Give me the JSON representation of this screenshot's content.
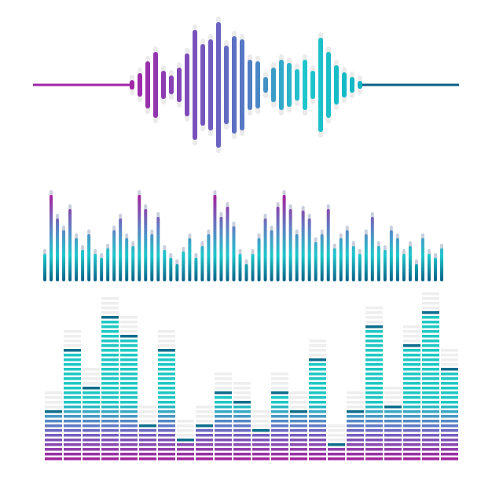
{
  "waveform": {
    "bars": [
      6,
      15,
      30,
      42,
      18,
      12,
      22,
      40,
      70,
      52,
      58,
      80,
      50,
      62,
      58,
      32,
      30,
      10,
      22,
      32,
      28,
      20,
      32,
      18,
      60,
      42,
      25,
      16,
      10,
      5
    ]
  },
  "equalizer": {
    "bars": [
      35,
      110,
      80,
      65,
      92,
      55,
      40,
      60,
      35,
      30,
      42,
      65,
      80,
      55,
      45,
      110,
      92,
      60,
      82,
      40,
      30,
      22,
      38,
      55,
      30,
      45,
      60,
      110,
      82,
      95,
      70,
      35,
      22,
      35,
      55,
      80,
      65,
      95,
      110,
      92,
      60,
      90,
      80,
      50,
      60,
      92,
      42,
      55,
      65,
      45,
      35,
      60,
      82,
      45,
      40,
      65,
      55,
      35,
      45,
      22,
      55,
      35,
      30,
      42
    ]
  },
  "level_meter": {
    "columns": [
      11,
      24,
      16,
      31,
      27,
      8,
      24,
      5,
      8,
      15,
      13,
      7,
      15,
      11,
      22,
      4,
      11,
      29,
      12,
      25,
      32,
      20
    ]
  }
}
